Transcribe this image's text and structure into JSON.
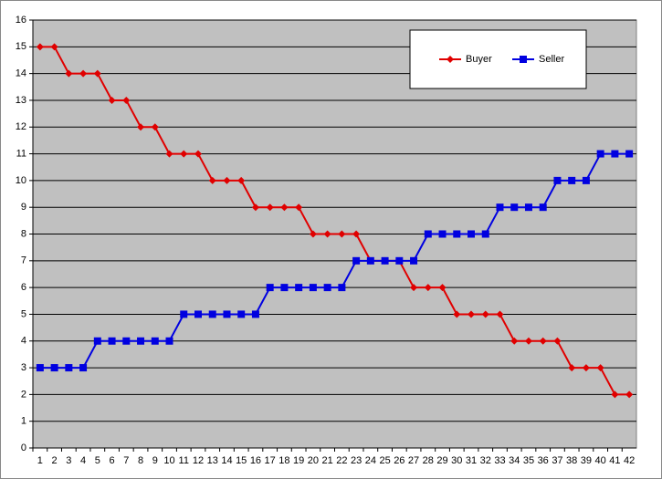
{
  "chart_data": {
    "type": "line",
    "categories": [
      1,
      2,
      3,
      4,
      5,
      6,
      7,
      8,
      9,
      10,
      11,
      12,
      13,
      14,
      15,
      16,
      17,
      18,
      19,
      20,
      21,
      22,
      23,
      24,
      25,
      26,
      27,
      28,
      29,
      30,
      31,
      32,
      33,
      34,
      35,
      36,
      37,
      38,
      39,
      40,
      41,
      42
    ],
    "series": [
      {
        "name": "Buyer",
        "color": "#e00000",
        "marker": "diamond",
        "values": [
          15,
          15,
          14,
          14,
          14,
          13,
          13,
          12,
          12,
          11,
          11,
          11,
          10,
          10,
          10,
          9,
          9,
          9,
          9,
          8,
          8,
          8,
          8,
          7,
          7,
          7,
          6,
          6,
          6,
          5,
          5,
          5,
          5,
          4,
          4,
          4,
          4,
          3,
          3,
          3,
          2,
          2
        ]
      },
      {
        "name": "Seller",
        "color": "#0000e0",
        "marker": "square",
        "values": [
          3,
          3,
          3,
          3,
          4,
          4,
          4,
          4,
          4,
          4,
          5,
          5,
          5,
          5,
          5,
          5,
          6,
          6,
          6,
          6,
          6,
          6,
          7,
          7,
          7,
          7,
          7,
          8,
          8,
          8,
          8,
          8,
          9,
          9,
          9,
          9,
          10,
          10,
          10,
          11,
          11,
          11
        ]
      }
    ],
    "ylim": [
      0,
      16
    ],
    "yticks": [
      0,
      1,
      2,
      3,
      4,
      5,
      6,
      7,
      8,
      9,
      10,
      11,
      12,
      13,
      14,
      15,
      16
    ],
    "grid": true,
    "legend": "top-right"
  }
}
